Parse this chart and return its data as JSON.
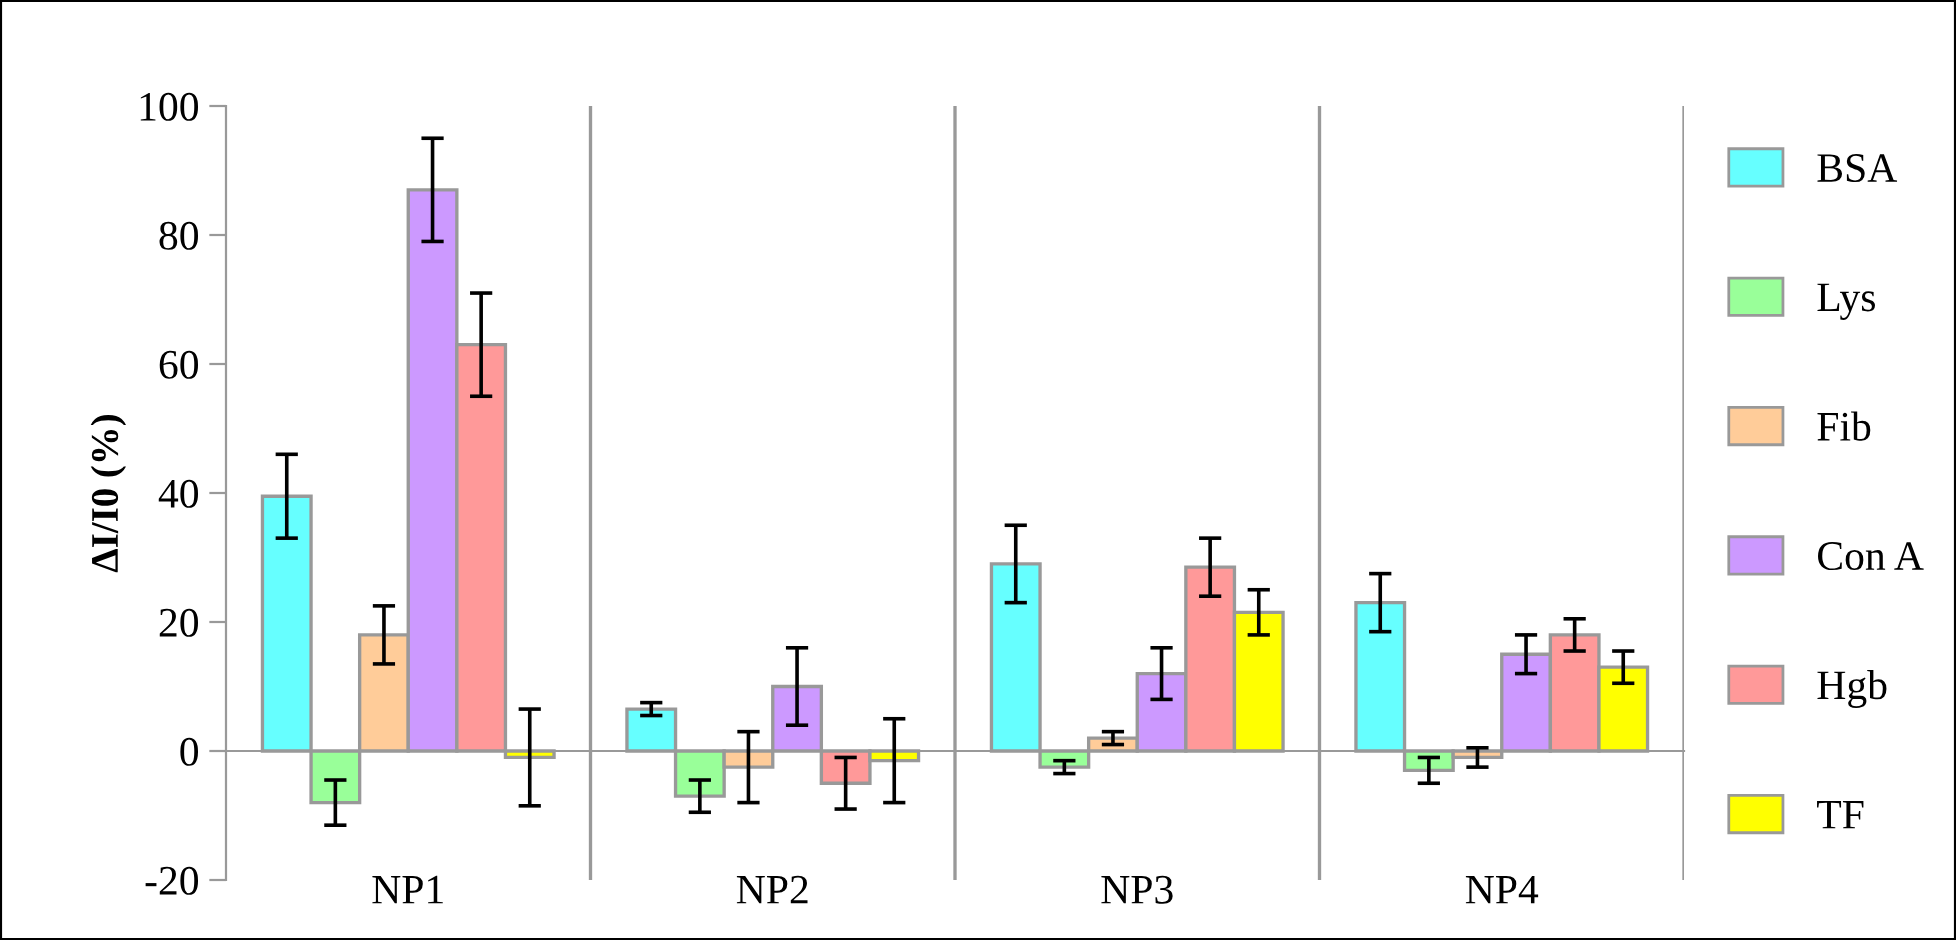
{
  "chart_data": {
    "type": "bar",
    "ylabel": "ΔI/I0 (%)",
    "categories": [
      "NP1",
      "NP2",
      "NP3",
      "NP4"
    ],
    "series": [
      {
        "name": "BSA",
        "color": "#66ffff",
        "values": [
          39.5,
          6.5,
          29,
          23
        ],
        "errors": [
          6.5,
          1,
          6,
          4.5
        ]
      },
      {
        "name": "Lys",
        "color": "#99ff99",
        "values": [
          -8,
          -7,
          -2.5,
          -3
        ],
        "errors": [
          3.5,
          2.5,
          1,
          2
        ]
      },
      {
        "name": "Fib",
        "color": "#ffcc99",
        "values": [
          18,
          -2.5,
          2,
          -1
        ],
        "errors": [
          4.5,
          5.5,
          1,
          1.5
        ]
      },
      {
        "name": "Con A",
        "color": "#cc99ff",
        "values": [
          87,
          10,
          12,
          15
        ],
        "errors": [
          8,
          6,
          4,
          3
        ]
      },
      {
        "name": "Hgb",
        "color": "#ff9999",
        "values": [
          63,
          -5,
          28.5,
          18
        ],
        "errors": [
          8,
          4,
          4.5,
          2.5
        ]
      },
      {
        "name": "TF",
        "color": "#ffff00",
        "values": [
          -1,
          -1.5,
          21.5,
          13
        ],
        "errors": [
          7.5,
          6.5,
          3.5,
          2.5
        ]
      }
    ],
    "ylim": [
      -20,
      100
    ],
    "yticks": [
      -20,
      0,
      20,
      40,
      60,
      80,
      100
    ],
    "grid": "x",
    "legend": "right"
  }
}
